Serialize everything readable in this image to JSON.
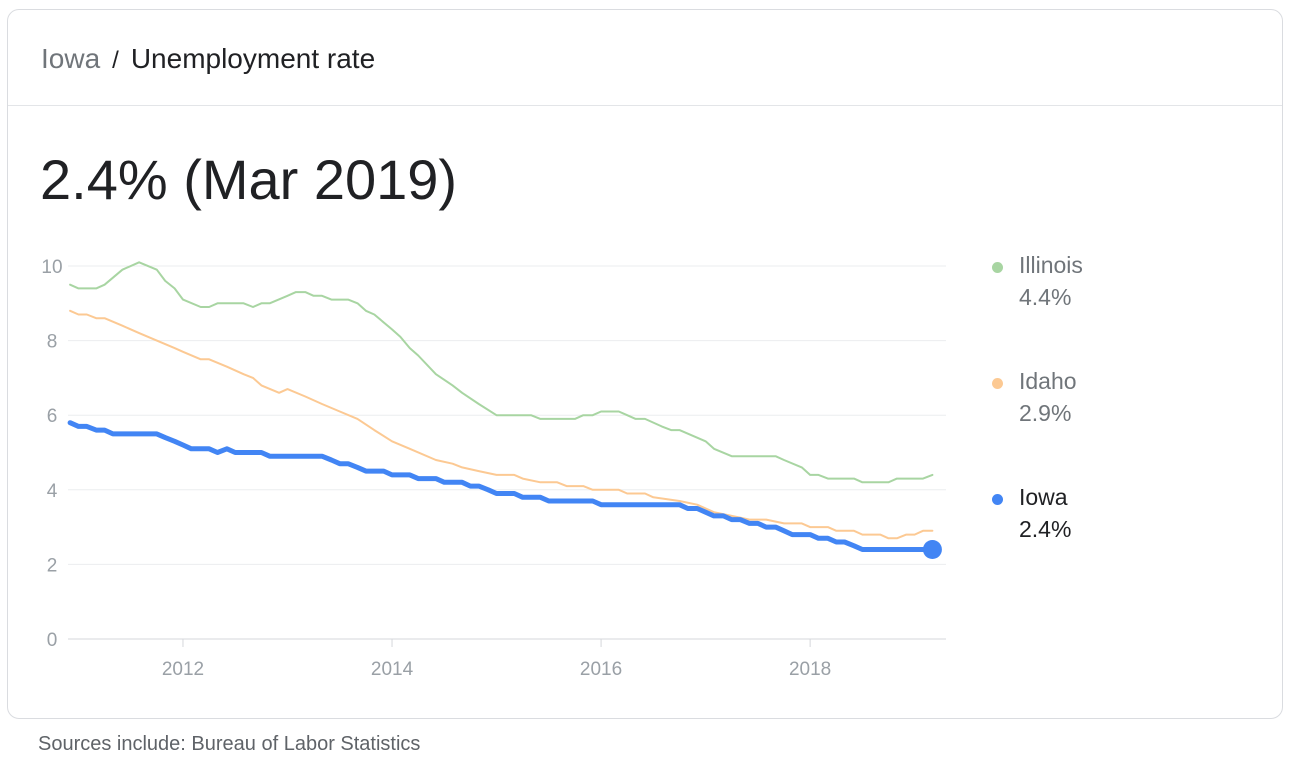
{
  "breadcrumb": {
    "location": "Iowa",
    "separator": "/",
    "metric": "Unemployment rate"
  },
  "headline": "2.4% (Mar 2019)",
  "source": "Sources include: Bureau of Labor Statistics",
  "legend": [
    {
      "name": "Illinois",
      "value": "4.4%",
      "color": "#a8d5a2",
      "active": false
    },
    {
      "name": "Idaho",
      "value": "2.9%",
      "color": "#fcc993",
      "active": false
    },
    {
      "name": "Iowa",
      "value": "2.4%",
      "color": "#4285f4",
      "active": true
    }
  ],
  "chart_data": {
    "type": "line",
    "xlim": [
      2010.9,
      2019.3
    ],
    "ylim": [
      0,
      10
    ],
    "yticks": [
      0,
      2,
      4,
      6,
      8,
      10
    ],
    "xticks": [
      2012,
      2014,
      2016,
      2018
    ],
    "xtick_labels": [
      "2012",
      "2014",
      "2016",
      "2018"
    ],
    "grid": true,
    "legend_position": "right",
    "series": [
      {
        "name": "Illinois",
        "color": "#a8d5a2",
        "points": [
          [
            2010.92,
            9.5
          ],
          [
            2011.0,
            9.4
          ],
          [
            2011.17,
            9.4
          ],
          [
            2011.25,
            9.5
          ],
          [
            2011.42,
            9.9
          ],
          [
            2011.58,
            10.1
          ],
          [
            2011.75,
            9.9
          ],
          [
            2011.83,
            9.6
          ],
          [
            2011.92,
            9.4
          ],
          [
            2012.0,
            9.1
          ],
          [
            2012.17,
            8.9
          ],
          [
            2012.25,
            8.9
          ],
          [
            2012.33,
            9.0
          ],
          [
            2012.58,
            9.0
          ],
          [
            2012.67,
            8.9
          ],
          [
            2012.75,
            9.0
          ],
          [
            2012.83,
            9.0
          ],
          [
            2013.0,
            9.2
          ],
          [
            2013.08,
            9.3
          ],
          [
            2013.17,
            9.3
          ],
          [
            2013.25,
            9.2
          ],
          [
            2013.33,
            9.2
          ],
          [
            2013.42,
            9.1
          ],
          [
            2013.58,
            9.1
          ],
          [
            2013.67,
            9.0
          ],
          [
            2013.75,
            8.8
          ],
          [
            2013.83,
            8.7
          ],
          [
            2014.0,
            8.3
          ],
          [
            2014.08,
            8.1
          ],
          [
            2014.17,
            7.8
          ],
          [
            2014.25,
            7.6
          ],
          [
            2014.42,
            7.1
          ],
          [
            2014.58,
            6.8
          ],
          [
            2014.67,
            6.6
          ],
          [
            2014.83,
            6.3
          ],
          [
            2015.0,
            6.0
          ],
          [
            2015.08,
            6.0
          ],
          [
            2015.33,
            6.0
          ],
          [
            2015.42,
            5.9
          ],
          [
            2015.75,
            5.9
          ],
          [
            2015.83,
            6.0
          ],
          [
            2015.92,
            6.0
          ],
          [
            2016.0,
            6.1
          ],
          [
            2016.17,
            6.1
          ],
          [
            2016.25,
            6.0
          ],
          [
            2016.33,
            5.9
          ],
          [
            2016.42,
            5.9
          ],
          [
            2016.58,
            5.7
          ],
          [
            2016.67,
            5.6
          ],
          [
            2016.75,
            5.6
          ],
          [
            2017.0,
            5.3
          ],
          [
            2017.08,
            5.1
          ],
          [
            2017.25,
            4.9
          ],
          [
            2017.67,
            4.9
          ],
          [
            2017.75,
            4.8
          ],
          [
            2017.92,
            4.6
          ],
          [
            2018.0,
            4.4
          ],
          [
            2018.08,
            4.4
          ],
          [
            2018.17,
            4.3
          ],
          [
            2018.42,
            4.3
          ],
          [
            2018.5,
            4.2
          ],
          [
            2018.75,
            4.2
          ],
          [
            2018.83,
            4.3
          ],
          [
            2019.08,
            4.3
          ],
          [
            2019.17,
            4.4
          ]
        ]
      },
      {
        "name": "Idaho",
        "color": "#fcc993",
        "points": [
          [
            2010.92,
            8.8
          ],
          [
            2011.0,
            8.7
          ],
          [
            2011.08,
            8.7
          ],
          [
            2011.17,
            8.6
          ],
          [
            2011.25,
            8.6
          ],
          [
            2011.42,
            8.4
          ],
          [
            2011.58,
            8.2
          ],
          [
            2011.75,
            8.0
          ],
          [
            2011.92,
            7.8
          ],
          [
            2012.0,
            7.7
          ],
          [
            2012.17,
            7.5
          ],
          [
            2012.25,
            7.5
          ],
          [
            2012.42,
            7.3
          ],
          [
            2012.58,
            7.1
          ],
          [
            2012.67,
            7.0
          ],
          [
            2012.75,
            6.8
          ],
          [
            2012.92,
            6.6
          ],
          [
            2013.0,
            6.7
          ],
          [
            2013.17,
            6.5
          ],
          [
            2013.33,
            6.3
          ],
          [
            2013.5,
            6.1
          ],
          [
            2013.67,
            5.9
          ],
          [
            2013.83,
            5.6
          ],
          [
            2014.0,
            5.3
          ],
          [
            2014.17,
            5.1
          ],
          [
            2014.42,
            4.8
          ],
          [
            2014.58,
            4.7
          ],
          [
            2014.67,
            4.6
          ],
          [
            2014.83,
            4.5
          ],
          [
            2015.0,
            4.4
          ],
          [
            2015.17,
            4.4
          ],
          [
            2015.25,
            4.3
          ],
          [
            2015.42,
            4.2
          ],
          [
            2015.58,
            4.2
          ],
          [
            2015.67,
            4.1
          ],
          [
            2015.83,
            4.1
          ],
          [
            2015.92,
            4.0
          ],
          [
            2016.17,
            4.0
          ],
          [
            2016.25,
            3.9
          ],
          [
            2016.42,
            3.9
          ],
          [
            2016.5,
            3.8
          ],
          [
            2016.75,
            3.7
          ],
          [
            2016.92,
            3.6
          ],
          [
            2017.08,
            3.4
          ],
          [
            2017.25,
            3.3
          ],
          [
            2017.42,
            3.2
          ],
          [
            2017.58,
            3.2
          ],
          [
            2017.75,
            3.1
          ],
          [
            2017.92,
            3.1
          ],
          [
            2018.0,
            3.0
          ],
          [
            2018.17,
            3.0
          ],
          [
            2018.25,
            2.9
          ],
          [
            2018.42,
            2.9
          ],
          [
            2018.5,
            2.8
          ],
          [
            2018.67,
            2.8
          ],
          [
            2018.75,
            2.7
          ],
          [
            2018.83,
            2.7
          ],
          [
            2018.92,
            2.8
          ],
          [
            2019.0,
            2.8
          ],
          [
            2019.08,
            2.9
          ],
          [
            2019.17,
            2.9
          ]
        ]
      },
      {
        "name": "Iowa",
        "color": "#4285f4",
        "points": [
          [
            2010.92,
            5.8
          ],
          [
            2011.0,
            5.7
          ],
          [
            2011.08,
            5.7
          ],
          [
            2011.17,
            5.6
          ],
          [
            2011.25,
            5.6
          ],
          [
            2011.33,
            5.5
          ],
          [
            2011.75,
            5.5
          ],
          [
            2011.83,
            5.4
          ],
          [
            2011.92,
            5.3
          ],
          [
            2012.0,
            5.2
          ],
          [
            2012.08,
            5.1
          ],
          [
            2012.25,
            5.1
          ],
          [
            2012.33,
            5.0
          ],
          [
            2012.42,
            5.1
          ],
          [
            2012.5,
            5.0
          ],
          [
            2012.75,
            5.0
          ],
          [
            2012.83,
            4.9
          ],
          [
            2013.33,
            4.9
          ],
          [
            2013.42,
            4.8
          ],
          [
            2013.5,
            4.7
          ],
          [
            2013.58,
            4.7
          ],
          [
            2013.67,
            4.6
          ],
          [
            2013.75,
            4.5
          ],
          [
            2013.92,
            4.5
          ],
          [
            2014.0,
            4.4
          ],
          [
            2014.17,
            4.4
          ],
          [
            2014.25,
            4.3
          ],
          [
            2014.42,
            4.3
          ],
          [
            2014.5,
            4.2
          ],
          [
            2014.67,
            4.2
          ],
          [
            2014.75,
            4.1
          ],
          [
            2014.83,
            4.1
          ],
          [
            2014.92,
            4.0
          ],
          [
            2015.0,
            3.9
          ],
          [
            2015.17,
            3.9
          ],
          [
            2015.25,
            3.8
          ],
          [
            2015.42,
            3.8
          ],
          [
            2015.5,
            3.7
          ],
          [
            2015.92,
            3.7
          ],
          [
            2016.0,
            3.6
          ],
          [
            2016.75,
            3.6
          ],
          [
            2016.83,
            3.5
          ],
          [
            2016.92,
            3.5
          ],
          [
            2017.0,
            3.4
          ],
          [
            2017.08,
            3.3
          ],
          [
            2017.17,
            3.3
          ],
          [
            2017.25,
            3.2
          ],
          [
            2017.33,
            3.2
          ],
          [
            2017.42,
            3.1
          ],
          [
            2017.5,
            3.1
          ],
          [
            2017.58,
            3.0
          ],
          [
            2017.67,
            3.0
          ],
          [
            2017.75,
            2.9
          ],
          [
            2017.83,
            2.8
          ],
          [
            2018.0,
            2.8
          ],
          [
            2018.08,
            2.7
          ],
          [
            2018.17,
            2.7
          ],
          [
            2018.25,
            2.6
          ],
          [
            2018.33,
            2.6
          ],
          [
            2018.42,
            2.5
          ],
          [
            2018.5,
            2.4
          ],
          [
            2019.17,
            2.4
          ]
        ]
      }
    ]
  }
}
